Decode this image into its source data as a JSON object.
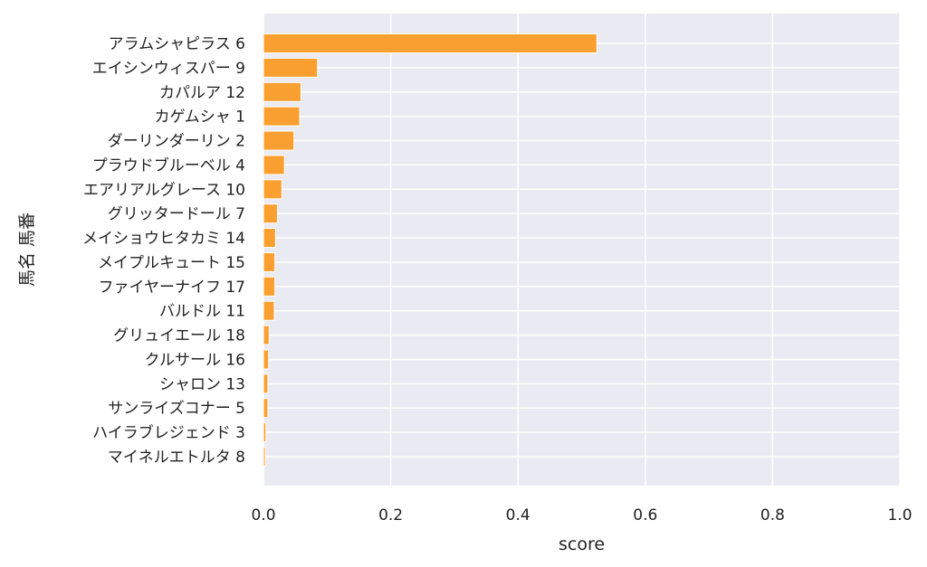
{
  "chart_data": {
    "type": "bar",
    "orientation": "horizontal",
    "categories": [
      "アラムシャピラス 6",
      "エイシンウィスパー 9",
      "カパルア 12",
      "カゲムシャ 1",
      "ダーリンダーリン 2",
      "プラウドブルーベル 4",
      "エアリアルグレース 10",
      "グリッタードール 7",
      "メイショウヒタカミ 14",
      "メイプルキュート 15",
      "ファイヤーナイフ 17",
      "バルドル 11",
      "グリュイエール 18",
      "クルサール 16",
      "シャロン 13",
      "サンライズコナー 5",
      "ハイラブレジェンド 3",
      "マイネルエトルタ 8"
    ],
    "values": [
      0.524,
      0.085,
      0.059,
      0.057,
      0.048,
      0.033,
      0.029,
      0.022,
      0.019,
      0.018,
      0.018,
      0.017,
      0.009,
      0.008,
      0.007,
      0.007,
      0.004,
      0.003
    ],
    "xlabel": "score",
    "ylabel": "馬名 馬番",
    "xlim": [
      0,
      1.0
    ],
    "xticks": [
      "0.0",
      "0.2",
      "0.4",
      "0.6",
      "0.8",
      "1.0"
    ],
    "grid": true,
    "bar_color": "#FAA031",
    "background_color": "#EAEAF2"
  }
}
